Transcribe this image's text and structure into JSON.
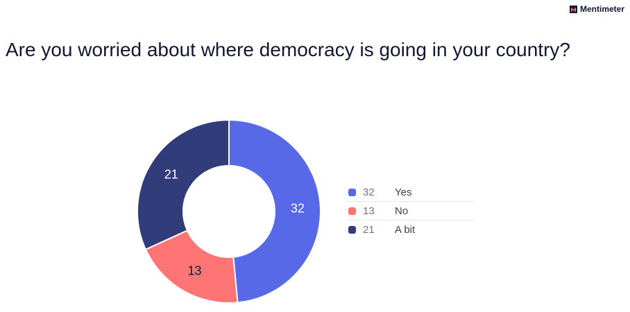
{
  "brand": {
    "name": "Mentimeter",
    "logo_icon": "mentimeter-logo-icon"
  },
  "question": "Are you worried about where democracy is going in your country?",
  "colors": {
    "yes": "#5769e7",
    "no": "#ff7575",
    "a_bit": "#313c7b",
    "text": "#101834"
  },
  "chart_data": {
    "type": "pie",
    "variant": "donut",
    "title": "Are you worried about where democracy is going in your country?",
    "categories": [
      "Yes",
      "No",
      "A bit"
    ],
    "values": [
      32,
      13,
      21
    ],
    "colors": [
      "#5769e7",
      "#ff7575",
      "#313c7b"
    ],
    "data_labels": [
      "32",
      "13",
      "21"
    ],
    "legend_position": "right"
  },
  "legend": [
    {
      "value": "32",
      "label": "Yes"
    },
    {
      "value": "13",
      "label": "No"
    },
    {
      "value": "21",
      "label": "A bit"
    }
  ]
}
